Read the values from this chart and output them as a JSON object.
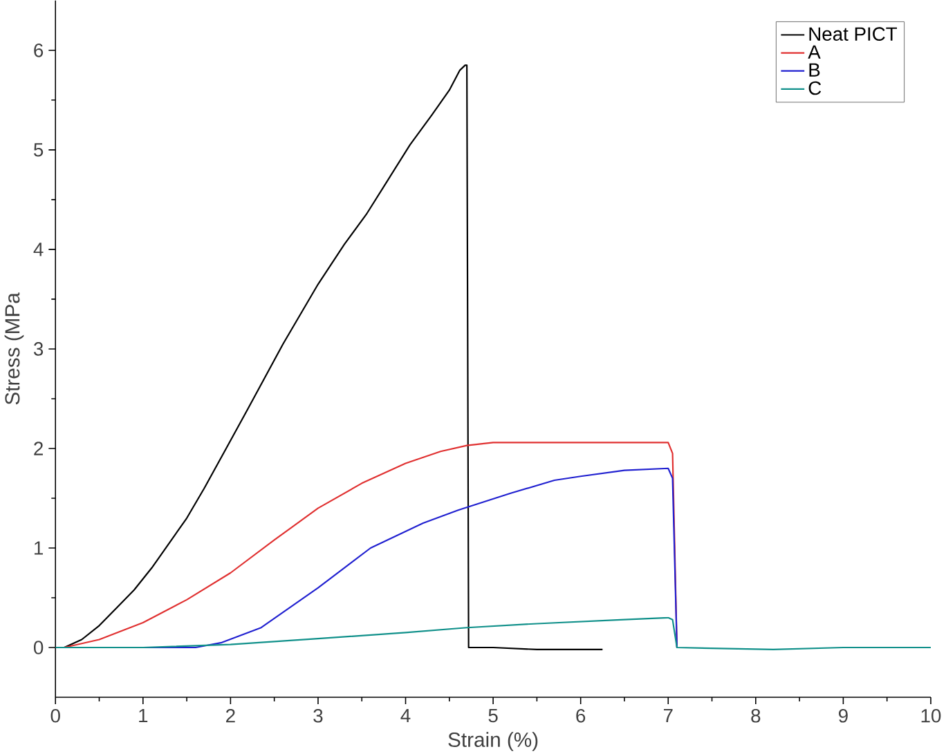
{
  "chart_data": {
    "type": "line",
    "xlabel": "Strain (%)",
    "ylabel": "Stress (MPa",
    "xlim": [
      0,
      10
    ],
    "ylim": [
      -0.5,
      6.5
    ],
    "xticks": [
      0,
      1,
      2,
      3,
      4,
      5,
      6,
      7,
      8,
      9,
      10
    ],
    "yticks": [
      0,
      1,
      2,
      3,
      4,
      5,
      6
    ],
    "grid": false,
    "legend": "top right",
    "marker": "none",
    "line_style": "solid",
    "series": [
      {
        "name": "Neat PICT",
        "color": "#000000",
        "x": [
          0.1,
          0.3,
          0.5,
          0.7,
          0.9,
          1.1,
          1.3,
          1.5,
          1.7,
          1.95,
          2.2,
          2.6,
          3.0,
          3.3,
          3.55,
          3.8,
          4.05,
          4.3,
          4.5,
          4.62,
          4.68,
          4.7,
          4.72,
          5.0,
          5.5,
          6.25
        ],
        "values": [
          0,
          0.08,
          0.22,
          0.4,
          0.58,
          0.8,
          1.05,
          1.3,
          1.6,
          2.0,
          2.4,
          3.05,
          3.65,
          4.05,
          4.35,
          4.7,
          5.05,
          5.35,
          5.6,
          5.8,
          5.85,
          5.85,
          0,
          0,
          -0.02,
          -0.02
        ]
      },
      {
        "name": "A",
        "color": "#e03030",
        "x": [
          0.1,
          0.5,
          1,
          1.5,
          2,
          2.5,
          3,
          3.5,
          4,
          4.4,
          4.7,
          5,
          6,
          7,
          7.05,
          7.1
        ],
        "values": [
          0,
          0.08,
          0.25,
          0.48,
          0.75,
          1.08,
          1.4,
          1.65,
          1.85,
          1.97,
          2.03,
          2.06,
          2.06,
          2.06,
          1.95,
          0
        ]
      },
      {
        "name": "B",
        "color": "#2020d0",
        "x": [
          0.9,
          1.6,
          1.9,
          2.35,
          3,
          3.6,
          4.2,
          4.6,
          5.2,
          5.7,
          6,
          6.5,
          7,
          7.05,
          7.1
        ],
        "values": [
          0,
          0,
          0.05,
          0.2,
          0.6,
          1.0,
          1.25,
          1.38,
          1.55,
          1.68,
          1.72,
          1.78,
          1.8,
          1.7,
          0
        ]
      },
      {
        "name": "C",
        "color": "#10908a",
        "x": [
          0,
          1,
          2,
          3,
          4,
          4.7,
          5.5,
          6.5,
          7,
          7.05,
          7.1,
          8.2,
          9,
          10
        ],
        "values": [
          0,
          0,
          0.03,
          0.09,
          0.15,
          0.2,
          0.24,
          0.28,
          0.3,
          0.28,
          0,
          -0.02,
          0,
          0
        ]
      }
    ]
  }
}
